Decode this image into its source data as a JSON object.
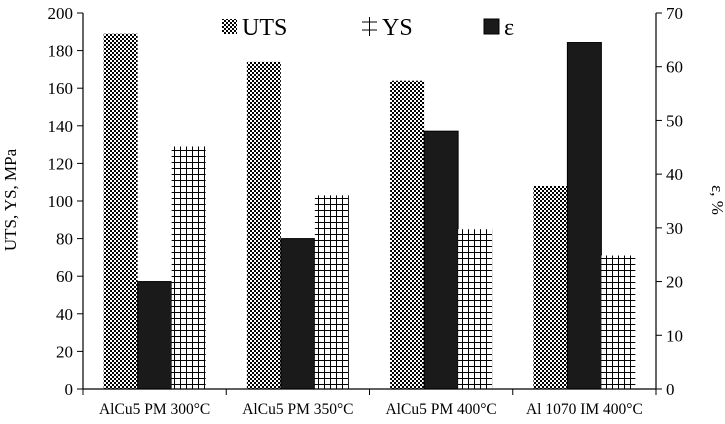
{
  "chart_data": {
    "type": "bar",
    "categories": [
      "AlCu5 PM 300°C",
      "AlCu5 PM 350°C",
      "AlCu5 PM 400°C",
      "Al 1070 IM 400°C"
    ],
    "series": [
      {
        "name": "UTS",
        "axis": "left",
        "values": [
          189,
          174,
          164,
          108
        ],
        "color": "#000000",
        "pattern": "checker"
      },
      {
        "name": "ε",
        "axis": "right",
        "values": [
          20,
          28,
          48,
          64.5
        ],
        "color": "#1a1a1a",
        "pattern": "solid"
      },
      {
        "name": "YS",
        "axis": "left",
        "values": [
          129,
          103,
          85,
          71
        ],
        "color": "#000000",
        "pattern": "grid"
      }
    ],
    "ylabel": "UTS, YS, MPa",
    "y2label": "ε, %",
    "ylim": [
      0,
      200
    ],
    "y2lim": [
      0,
      70
    ],
    "yticks": [
      "0",
      "20",
      "40",
      "60",
      "80",
      "100",
      "120",
      "140",
      "160",
      "180",
      "200"
    ],
    "y2ticks": [
      "0",
      "10",
      "20",
      "30",
      "40",
      "50",
      "60",
      "70"
    ],
    "legend": [
      "UTS",
      "YS",
      "ε"
    ],
    "legend_position": "top",
    "grid": false
  }
}
